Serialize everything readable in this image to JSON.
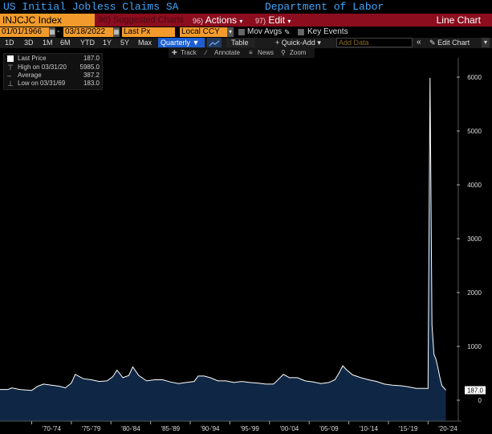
{
  "header": {
    "security_title": "US Initial Jobless Claims SA",
    "source": "Department of Labor"
  },
  "action_bar": {
    "ticker": "INJCJC Index",
    "suggested_num": "96",
    "suggested_label": "Suggested Charts",
    "actions_num": "96)",
    "actions_label": "Actions",
    "edit_num": "97)",
    "edit_label": "Edit",
    "view_label": "Line Chart"
  },
  "inputs": {
    "start_date": "01/01/1966",
    "end_date": "03/18/2022",
    "field": "Last Px",
    "currency": "Local CCY",
    "mov_avgs": "Mov Avgs",
    "key_events": "Key Events"
  },
  "toolbar": {
    "periods": [
      "1D",
      "3D",
      "1M",
      "6M",
      "YTD",
      "1Y",
      "5Y",
      "Max"
    ],
    "frequency": "Quarterly",
    "table_label": "Table",
    "quick_add": "Quick-Add",
    "add_data_placeholder": "Add Data",
    "edit_chart": "Edit Chart"
  },
  "chart_tools": [
    "Track",
    "Annotate",
    "News",
    "Zoom"
  ],
  "legend": [
    {
      "label": "Last Price",
      "value": "187.0"
    },
    {
      "label": "High on 03/31/20",
      "value": "5985.0"
    },
    {
      "label": "Average",
      "value": "387.2"
    },
    {
      "label": "Low on 03/31/69",
      "value": "183.0"
    }
  ],
  "colors": {
    "accent_orange": "#f29b2c",
    "action_red": "#8b0d1e",
    "title_blue": "#3fa6ff",
    "area_fill": "#0f2744",
    "line": "#ffffff"
  },
  "chart_data": {
    "type": "area",
    "title": "US Initial Jobless Claims SA",
    "ylim": [
      -100,
      6300
    ],
    "y_ticks": [
      0,
      1000,
      2000,
      3000,
      4000,
      5000,
      6000
    ],
    "x_tick_labels": [
      "'70-'74",
      "'75-'79",
      "'80-'84",
      "'85-'89",
      "'90-'94",
      "'95-'99",
      "'00-'04",
      "'05-'09",
      "'10-'14",
      "'15-'19",
      "'20-'24"
    ],
    "x_range": [
      1966.0,
      2022.5
    ],
    "last_value_label": "187.0",
    "grid": false,
    "series": [
      {
        "name": "Last Price",
        "x": [
          1966.0,
          1967.0,
          1967.5,
          1968.5,
          1969.25,
          1970.0,
          1970.75,
          1971.5,
          1972.5,
          1973.5,
          1974.25,
          1975.0,
          1975.5,
          1976.5,
          1977.5,
          1978.5,
          1979.5,
          1980.25,
          1980.75,
          1981.5,
          1982.25,
          1982.75,
          1983.5,
          1984.5,
          1985.5,
          1986.5,
          1987.5,
          1988.5,
          1989.5,
          1990.5,
          1991.0,
          1991.75,
          1992.5,
          1993.5,
          1994.5,
          1995.5,
          1996.5,
          1997.5,
          1998.5,
          1999.5,
          2000.5,
          2001.0,
          2001.75,
          2002.5,
          2003.5,
          2004.5,
          2005.5,
          2006.5,
          2007.5,
          2008.25,
          2008.75,
          2009.25,
          2009.75,
          2010.5,
          2011.5,
          2012.5,
          2013.5,
          2014.5,
          2015.5,
          2016.5,
          2017.5,
          2018.5,
          2019.5,
          2019.75,
          2020.0,
          2020.25,
          2020.5,
          2020.75,
          2021.0,
          2021.25,
          2021.5,
          2021.75,
          2022.0,
          2022.25
        ],
        "y": [
          200,
          200,
          230,
          200,
          190,
          183,
          260,
          300,
          280,
          260,
          230,
          320,
          480,
          400,
          380,
          350,
          360,
          440,
          560,
          420,
          460,
          620,
          460,
          360,
          380,
          380,
          340,
          310,
          330,
          350,
          450,
          450,
          420,
          360,
          360,
          330,
          350,
          330,
          320,
          300,
          300,
          370,
          480,
          420,
          420,
          360,
          340,
          310,
          330,
          380,
          500,
          640,
          560,
          470,
          420,
          380,
          350,
          300,
          280,
          270,
          250,
          220,
          220,
          220,
          220,
          5985,
          1400,
          850,
          760,
          600,
          420,
          270,
          230,
          187
        ]
      }
    ]
  }
}
